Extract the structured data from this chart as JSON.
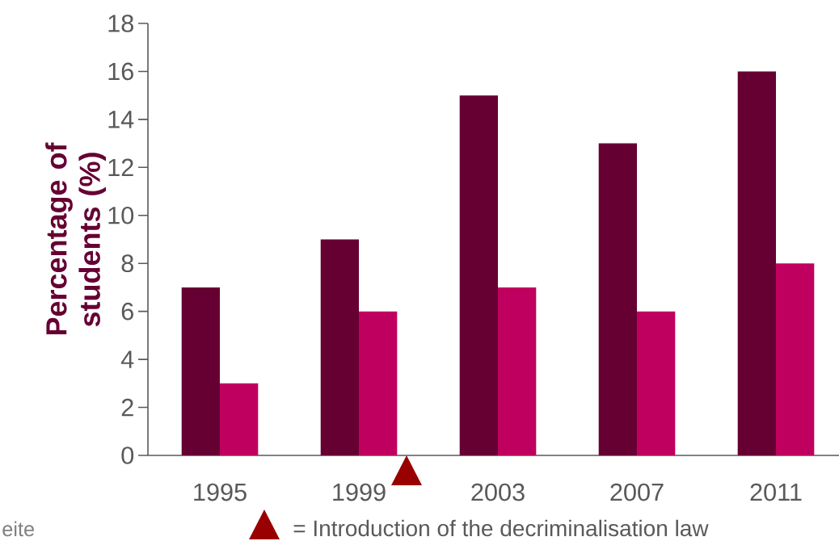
{
  "chart_data": {
    "type": "bar",
    "ylabel": "Percentage of students (%)",
    "categories": [
      "1995",
      "1999",
      "2003",
      "2007",
      "2011"
    ],
    "series": [
      {
        "color": "#660033",
        "values": [
          7,
          9,
          15,
          13,
          16
        ]
      },
      {
        "color": "#c0005f",
        "values": [
          3,
          6,
          7,
          6,
          8
        ]
      }
    ],
    "ylim": [
      0,
      18
    ],
    "yticks": [
      0,
      2,
      4,
      6,
      8,
      10,
      12,
      14,
      16,
      18
    ],
    "annotations": [
      "= Introduction of the decriminalisation law",
      "eite"
    ]
  }
}
